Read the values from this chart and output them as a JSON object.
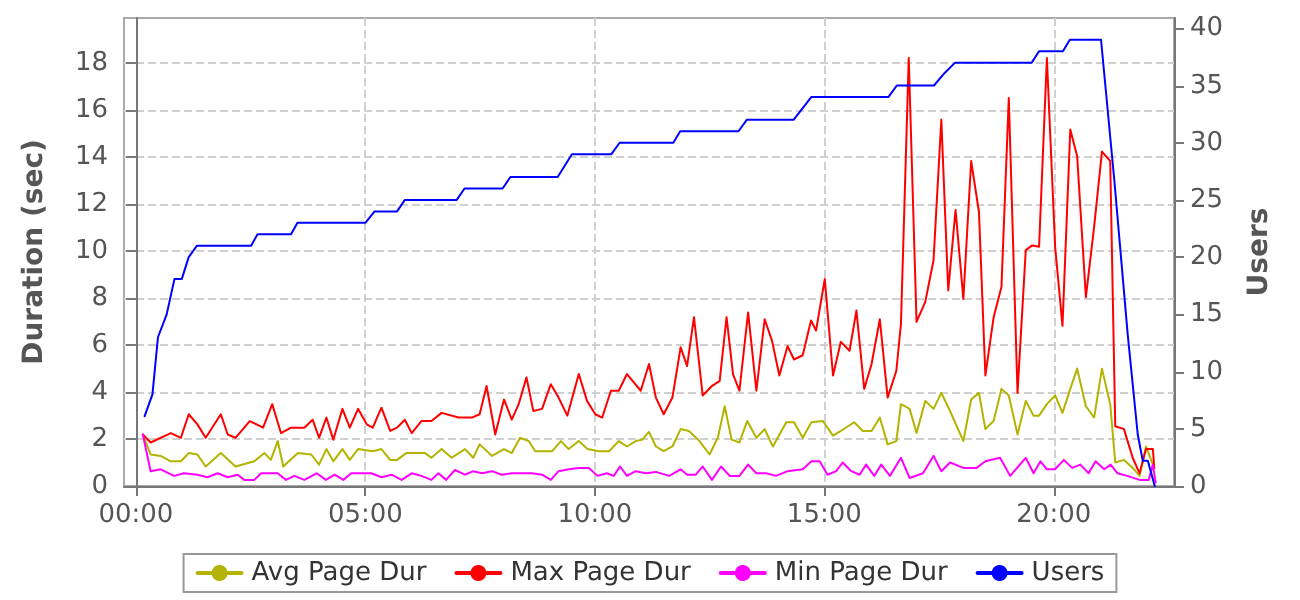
{
  "chart_data": {
    "type": "line",
    "xlabel": null,
    "ylabel": "Duration (sec)",
    "y2label": "Users",
    "xlim": [
      -0.26,
      22.62
    ],
    "xticks": [
      {
        "value": 0,
        "label": "00:00"
      },
      {
        "value": 5,
        "label": "05:00"
      },
      {
        "value": 10,
        "label": "10:00"
      },
      {
        "value": 15,
        "label": "15:00"
      },
      {
        "value": 20,
        "label": "20:00"
      }
    ],
    "ylim": [
      0,
      19.9
    ],
    "yticks": [
      0,
      2,
      4,
      6,
      8,
      10,
      12,
      14,
      16,
      18
    ],
    "y2lim": [
      0,
      40.9
    ],
    "y2ticks": [
      0,
      5,
      10,
      15,
      20,
      25,
      30,
      35,
      40
    ],
    "grid": true,
    "legend": "bottom",
    "marker": "none",
    "line_style": "solid",
    "series": [
      {
        "name": "Avg Page Dur",
        "color": "#b3b300",
        "x": [
          0.15,
          0.32,
          0.54,
          0.76,
          0.98,
          1.15,
          1.34,
          1.52,
          1.85,
          2.17,
          2.58,
          2.8,
          2.94,
          3.09,
          3.21,
          3.53,
          3.82,
          3.99,
          4.15,
          4.3,
          4.5,
          4.66,
          4.84,
          5.16,
          5.35,
          5.54,
          5.69,
          5.89,
          6.3,
          6.44,
          6.66,
          6.88,
          7.17,
          7.35,
          7.49,
          7.76,
          8.02,
          8.19,
          8.37,
          8.56,
          8.7,
          9.07,
          9.26,
          9.43,
          9.65,
          9.84,
          10.09,
          10.31,
          10.52,
          10.7,
          10.89,
          11.03,
          11.18,
          11.33,
          11.5,
          11.69,
          11.87,
          12.05,
          12.28,
          12.5,
          12.68,
          12.83,
          12.98,
          13.15,
          13.32,
          13.52,
          13.7,
          13.88,
          14.17,
          14.34,
          14.53,
          14.72,
          14.97,
          15.19,
          15.36,
          15.65,
          15.84,
          16.03,
          16.21,
          16.38,
          16.57,
          16.67,
          16.86,
          17.01,
          17.2,
          17.38,
          17.55,
          17.74,
          18.03,
          18.2,
          18.37,
          18.51,
          18.69,
          18.86,
          19.02,
          19.21,
          19.39,
          19.56,
          19.68,
          19.85,
          20.03,
          20.19,
          20.36,
          20.51,
          20.7,
          20.88,
          21.05,
          21.23,
          21.34,
          21.53,
          21.72,
          21.87,
          22.01,
          22.16
        ],
        "values": [
          2.19,
          1.34,
          1.28,
          1.05,
          1.05,
          1.4,
          1.34,
          0.83,
          1.4,
          0.83,
          1.05,
          1.4,
          1.11,
          1.91,
          0.83,
          1.4,
          1.34,
          0.91,
          1.57,
          1.05,
          1.57,
          1.11,
          1.57,
          1.48,
          1.57,
          1.11,
          1.11,
          1.4,
          1.4,
          1.2,
          1.57,
          1.2,
          1.57,
          1.2,
          1.77,
          1.28,
          1.57,
          1.4,
          2.05,
          1.91,
          1.48,
          1.48,
          1.91,
          1.57,
          1.91,
          1.57,
          1.48,
          1.48,
          1.91,
          1.68,
          1.91,
          1.97,
          2.3,
          1.68,
          1.48,
          1.68,
          2.42,
          2.34,
          1.91,
          1.34,
          2.05,
          3.39,
          1.97,
          1.85,
          2.76,
          2.05,
          2.42,
          1.68,
          2.71,
          2.71,
          2.05,
          2.71,
          2.76,
          2.14,
          2.34,
          2.71,
          2.34,
          2.34,
          2.91,
          1.77,
          1.91,
          3.48,
          3.28,
          2.25,
          3.62,
          3.28,
          3.96,
          3.19,
          1.91,
          3.68,
          3.96,
          2.42,
          2.76,
          4.13,
          3.85,
          2.19,
          3.62,
          2.99,
          2.99,
          3.48,
          3.85,
          3.11,
          4.13,
          4.99,
          3.39,
          2.91,
          4.99,
          3.48,
          1.0,
          1.11,
          0.77,
          0.43,
          1.68,
          0.91
        ]
      },
      {
        "name": "Max Page Dur",
        "color": "#ff0000",
        "x": [
          0.15,
          0.32,
          0.76,
          0.98,
          1.15,
          1.34,
          1.52,
          1.85,
          2.0,
          2.17,
          2.48,
          2.77,
          2.97,
          3.16,
          3.38,
          3.67,
          3.85,
          3.99,
          4.15,
          4.3,
          4.5,
          4.66,
          4.84,
          5.03,
          5.16,
          5.35,
          5.54,
          5.69,
          5.86,
          6.01,
          6.22,
          6.44,
          6.66,
          7.03,
          7.32,
          7.49,
          7.64,
          7.83,
          8.02,
          8.19,
          8.34,
          8.51,
          8.66,
          8.85,
          9.04,
          9.21,
          9.4,
          9.65,
          9.83,
          10.01,
          10.16,
          10.35,
          10.52,
          10.7,
          11.0,
          11.18,
          11.33,
          11.5,
          11.69,
          11.87,
          12.01,
          12.16,
          12.35,
          12.55,
          12.72,
          12.87,
          13.01,
          13.15,
          13.34,
          13.52,
          13.7,
          13.86,
          14.02,
          14.2,
          14.34,
          14.53,
          14.71,
          14.82,
          15.01,
          15.19,
          15.36,
          15.55,
          15.7,
          15.87,
          16.03,
          16.21,
          16.38,
          16.57,
          16.67,
          16.84,
          17.01,
          17.2,
          17.38,
          17.55,
          17.7,
          17.86,
          18.03,
          18.2,
          18.37,
          18.51,
          18.69,
          18.86,
          19.02,
          19.21,
          19.39,
          19.53,
          19.68,
          19.85,
          20.03,
          20.19,
          20.36,
          20.51,
          20.7,
          20.88,
          21.05,
          21.23,
          21.34,
          21.53,
          21.72,
          21.87,
          22.01,
          22.16,
          22.19
        ],
        "values": [
          2.19,
          1.85,
          2.25,
          2.05,
          3.05,
          2.62,
          2.05,
          3.05,
          2.19,
          2.05,
          2.76,
          2.48,
          3.48,
          2.25,
          2.48,
          2.48,
          2.82,
          2.05,
          2.91,
          1.97,
          3.28,
          2.48,
          3.28,
          2.62,
          2.48,
          3.33,
          2.34,
          2.48,
          2.82,
          2.25,
          2.76,
          2.76,
          3.11,
          2.91,
          2.91,
          3.05,
          4.25,
          2.19,
          3.68,
          2.82,
          3.48,
          4.62,
          3.19,
          3.28,
          4.33,
          3.76,
          2.99,
          4.76,
          3.62,
          3.05,
          2.91,
          4.05,
          4.05,
          4.76,
          4.05,
          5.19,
          3.76,
          3.05,
          3.76,
          5.9,
          5.1,
          7.18,
          3.85,
          4.25,
          4.47,
          7.18,
          4.76,
          4.05,
          7.38,
          4.05,
          7.09,
          6.18,
          4.7,
          5.95,
          5.38,
          5.56,
          7.04,
          6.61,
          8.8,
          4.7,
          6.13,
          5.75,
          7.46,
          4.13,
          5.19,
          7.09,
          3.76,
          4.9,
          6.89,
          18.2,
          6.98,
          7.83,
          9.6,
          15.58,
          8.32,
          11.74,
          7.95,
          13.82,
          11.65,
          4.7,
          7.18,
          8.46,
          16.5,
          3.96,
          10.03,
          10.23,
          10.17,
          18.2,
          10.17,
          6.81,
          15.16,
          14.02,
          8.03,
          11.03,
          14.22,
          13.82,
          2.54,
          2.42,
          1.2,
          0.54,
          1.57,
          1.57,
          0.77
        ]
      },
      {
        "name": "Min Page Dur",
        "color": "#ff00ff",
        "x": [
          0.15,
          0.32,
          0.54,
          0.83,
          1.05,
          1.34,
          1.56,
          1.78,
          2.0,
          2.22,
          2.36,
          2.58,
          2.73,
          3.09,
          3.27,
          3.45,
          3.67,
          3.94,
          4.14,
          4.33,
          4.52,
          4.69,
          5.13,
          5.35,
          5.57,
          5.79,
          6.01,
          6.22,
          6.44,
          6.59,
          6.76,
          6.95,
          7.17,
          7.35,
          7.54,
          7.76,
          7.97,
          8.19,
          8.63,
          8.85,
          9.04,
          9.21,
          9.43,
          9.65,
          9.87,
          10.06,
          10.26,
          10.41,
          10.55,
          10.7,
          10.89,
          11.11,
          11.33,
          11.62,
          11.87,
          12.01,
          12.2,
          12.35,
          12.55,
          12.75,
          12.94,
          13.15,
          13.34,
          13.52,
          13.73,
          13.95,
          14.2,
          14.53,
          14.72,
          14.9,
          15.07,
          15.26,
          15.4,
          15.59,
          15.77,
          15.91,
          16.09,
          16.24,
          16.43,
          16.67,
          16.86,
          17.15,
          17.38,
          17.55,
          17.74,
          18.03,
          18.32,
          18.51,
          18.83,
          19.05,
          19.39,
          19.56,
          19.71,
          19.85,
          20.03,
          20.22,
          20.4,
          20.58,
          20.76,
          20.91,
          21.1,
          21.24,
          21.39,
          21.6,
          21.87,
          22.07,
          22.16,
          22.22
        ],
        "values": [
          2.19,
          0.63,
          0.71,
          0.43,
          0.54,
          0.48,
          0.37,
          0.54,
          0.37,
          0.48,
          0.26,
          0.26,
          0.54,
          0.54,
          0.26,
          0.43,
          0.26,
          0.54,
          0.26,
          0.48,
          0.26,
          0.54,
          0.54,
          0.37,
          0.48,
          0.26,
          0.54,
          0.43,
          0.26,
          0.54,
          0.26,
          0.68,
          0.48,
          0.63,
          0.54,
          0.63,
          0.48,
          0.54,
          0.54,
          0.48,
          0.26,
          0.63,
          0.71,
          0.77,
          0.77,
          0.43,
          0.54,
          0.43,
          0.83,
          0.43,
          0.63,
          0.54,
          0.6,
          0.43,
          0.71,
          0.48,
          0.48,
          0.83,
          0.26,
          0.83,
          0.43,
          0.43,
          0.91,
          0.54,
          0.54,
          0.43,
          0.63,
          0.71,
          1.05,
          1.05,
          0.48,
          0.63,
          1.0,
          0.63,
          0.48,
          0.91,
          0.43,
          0.91,
          0.43,
          1.2,
          0.34,
          0.54,
          1.28,
          0.63,
          1.0,
          0.77,
          0.77,
          1.05,
          1.2,
          0.43,
          1.2,
          0.54,
          1.05,
          0.71,
          0.71,
          1.11,
          0.77,
          0.91,
          0.54,
          1.05,
          0.71,
          0.91,
          0.54,
          0.43,
          0.26,
          0.26,
          0.91,
          0.14
        ]
      },
      {
        "name": "Users",
        "color": "#0000ff",
        "axis": "y2",
        "x": [
          0.19,
          0.36,
          0.48,
          0.67,
          0.84,
          1.0,
          1.15,
          1.33,
          2.51,
          2.65,
          3.38,
          3.52,
          5.0,
          5.2,
          5.69,
          5.86,
          6.99,
          7.16,
          7.99,
          8.16,
          9.19,
          9.5,
          10.36,
          10.54,
          11.71,
          11.86,
          13.13,
          13.31,
          14.33,
          14.72,
          16.4,
          16.58,
          17.39,
          17.6,
          17.85,
          19.52,
          19.68,
          20.2,
          20.35,
          21.03,
          21.32,
          21.61,
          21.83,
          21.94,
          22.05,
          22.2
        ],
        "values": [
          6.1,
          8,
          13,
          15,
          18.1,
          18.1,
          20,
          21,
          21,
          22,
          22,
          23,
          23,
          24,
          24,
          25,
          25,
          26,
          26,
          27,
          27,
          29,
          29,
          30,
          30,
          31,
          31,
          32,
          32,
          34,
          34,
          35,
          35,
          36,
          37,
          37,
          38,
          38,
          39,
          39,
          26.7,
          13.3,
          4.5,
          2.2,
          2.2,
          0
        ]
      }
    ]
  }
}
